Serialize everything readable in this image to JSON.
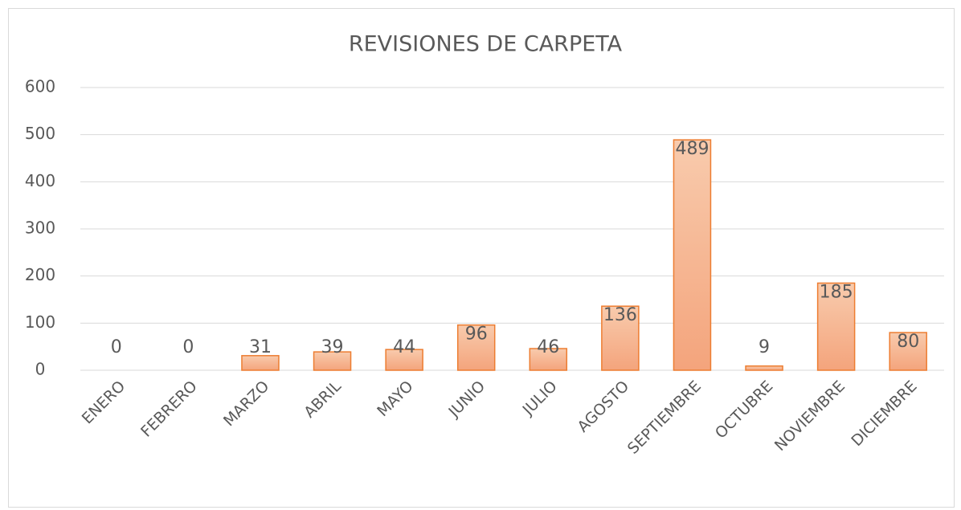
{
  "chart_data": {
    "type": "bar",
    "title": "REVISIONES DE CARPETA",
    "categories": [
      "ENERO",
      "FEBRERO",
      "MARZO",
      "ABRIL",
      "MAYO",
      "JUNIO",
      "JULIO",
      "AGOSTO",
      "SEPTIEMBRE",
      "OCTUBRE",
      "NOVIEMBRE",
      "DICIEMBRE"
    ],
    "values": [
      0,
      0,
      31,
      39,
      44,
      96,
      46,
      136,
      489,
      9,
      185,
      80
    ],
    "color": "#f4b183",
    "edge_color": "#ed7d31",
    "ylim": [
      0,
      600
    ],
    "yticks": [
      0,
      100,
      200,
      300,
      400,
      500,
      600
    ],
    "grid": true
  }
}
